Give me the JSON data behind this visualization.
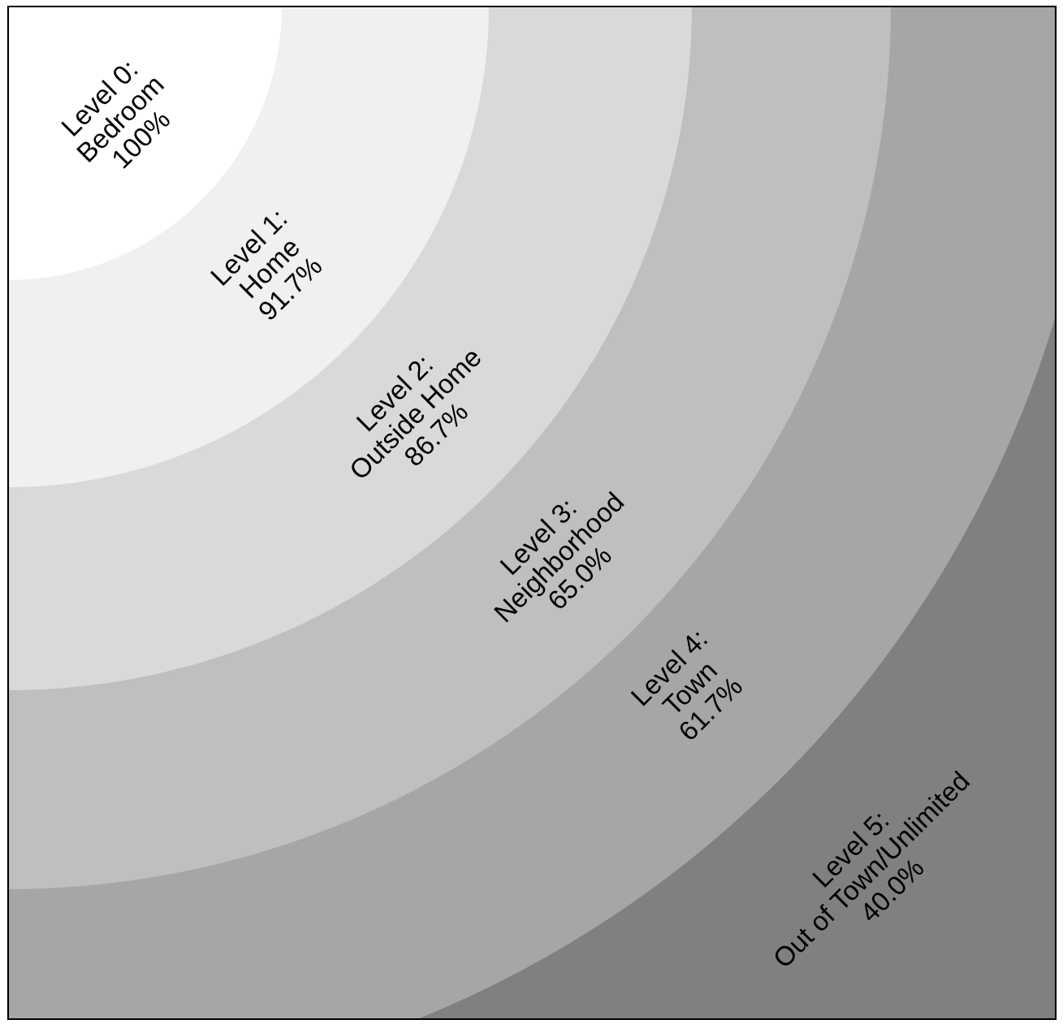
{
  "chart_data": {
    "type": "other",
    "categories": [
      "Level 0:\nBedroom",
      "Level 1:\nHome",
      "Level 2:\nOutside Home",
      "Level 3:\nNeighborhood",
      "Level 4:\nTown",
      "Level 5:\nOut of Town/Unlimited"
    ],
    "values": [
      100,
      91.7,
      86.7,
      65.0,
      61.7,
      40.0
    ],
    "value_labels": [
      "100%",
      "91.7%",
      "86.7%",
      "65.0%",
      "61.7%",
      "40.0%"
    ],
    "colors": [
      "#ffffff",
      "#f0f0f0",
      "#d9d9d9",
      "#bfbfbf",
      "#a6a6a6",
      "#808080"
    ]
  }
}
